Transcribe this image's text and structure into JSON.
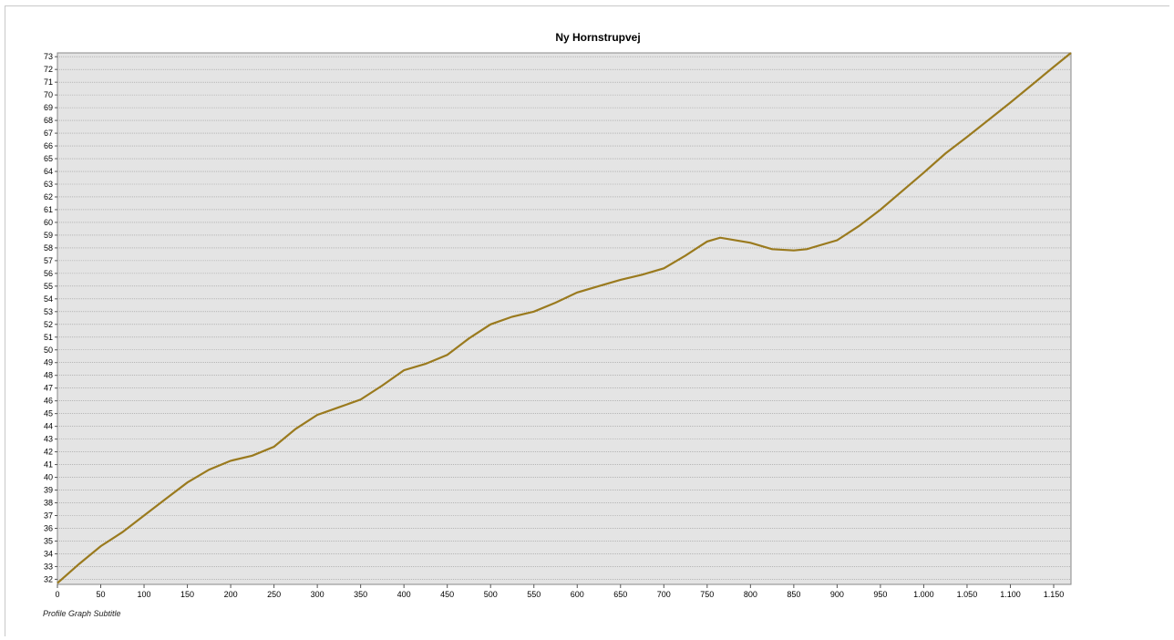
{
  "chart_data": {
    "type": "line",
    "title": "Ny Hornstrupvej",
    "subtitle": "Profile Graph Subtitle",
    "xlabel": "",
    "ylabel": "",
    "xlim": [
      0,
      1170
    ],
    "ylim": [
      31.6,
      73.3
    ],
    "x_ticks": [
      0,
      50,
      100,
      150,
      200,
      250,
      300,
      350,
      400,
      450,
      500,
      550,
      600,
      650,
      700,
      750,
      800,
      850,
      900,
      950,
      1000,
      1050,
      1100,
      1150
    ],
    "x_tick_labels": [
      "0",
      "50",
      "100",
      "150",
      "200",
      "250",
      "300",
      "350",
      "400",
      "450",
      "500",
      "550",
      "600",
      "650",
      "700",
      "750",
      "800",
      "850",
      "900",
      "950",
      "1.000",
      "1.050",
      "1.100",
      "1.150"
    ],
    "y_ticks": [
      32,
      33,
      34,
      35,
      36,
      37,
      38,
      39,
      40,
      41,
      42,
      43,
      44,
      45,
      46,
      47,
      48,
      49,
      50,
      51,
      52,
      53,
      54,
      55,
      56,
      57,
      58,
      59,
      60,
      61,
      62,
      63,
      64,
      65,
      66,
      67,
      68,
      69,
      70,
      71,
      72,
      73
    ],
    "grid": true,
    "legend": "none",
    "colors": {
      "line": "#9a7a1e",
      "plot_bg": "#e4e4e4",
      "grid": "#9a9a9a"
    },
    "series": [
      {
        "x": [
          0,
          25,
          50,
          75,
          100,
          125,
          150,
          175,
          200,
          225,
          250,
          275,
          300,
          325,
          350,
          375,
          400,
          425,
          450,
          475,
          500,
          525,
          550,
          575,
          600,
          625,
          650,
          675,
          700,
          725,
          750,
          765,
          800,
          825,
          850,
          865,
          900,
          925,
          950,
          1000,
          1025,
          1050,
          1100,
          1150,
          1170
        ],
        "y": [
          31.7,
          33.2,
          34.6,
          35.7,
          37.0,
          38.3,
          39.6,
          40.6,
          41.3,
          41.7,
          42.4,
          43.8,
          44.9,
          45.5,
          46.1,
          47.2,
          48.4,
          48.9,
          49.6,
          50.9,
          52.0,
          52.6,
          53.0,
          53.7,
          54.5,
          55.0,
          55.5,
          55.9,
          56.4,
          57.4,
          58.5,
          58.8,
          58.4,
          57.9,
          57.8,
          57.9,
          58.6,
          59.7,
          61.0,
          63.9,
          65.4,
          66.7,
          69.4,
          72.2,
          73.3
        ]
      }
    ]
  }
}
